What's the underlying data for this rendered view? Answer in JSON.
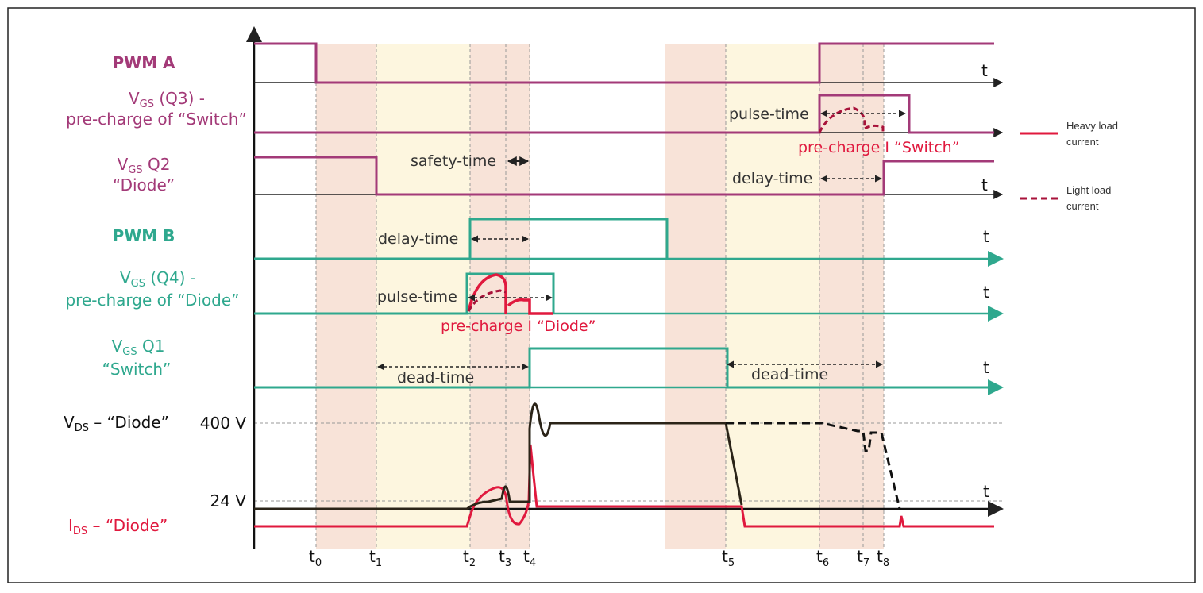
{
  "colors": {
    "pwm_a": "#A33A78",
    "pwm_b": "#2FA88E",
    "heavy": "#E0193E",
    "light": "#A8123A",
    "vds": "#1a1a1a",
    "shade_orange": "#F8E3D8",
    "shade_yellow": "#FDF6DF",
    "dashed_grid": "#999999"
  },
  "signals": {
    "pwm_a": "PWM A",
    "vgs_q3_main": "V",
    "vgs_q3_sub": "GS",
    "vgs_q3_rest": " (Q3) -",
    "vgs_q3_line2": "pre-charge of “Switch”",
    "vgs_q2_main": "V",
    "vgs_q2_sub": "GS",
    "vgs_q2_rest": " Q2",
    "vgs_q2_line2": "“Diode”",
    "pwm_b": "PWM B",
    "vgs_q4_main": "V",
    "vgs_q4_sub": "GS",
    "vgs_q4_rest": " (Q4) -",
    "vgs_q4_line2": "pre-charge of “Diode”",
    "vgs_q1_main": "V",
    "vgs_q1_sub": "GS",
    "vgs_q1_rest": " Q1",
    "vgs_q1_line2": "“Switch”",
    "vds_main": "V",
    "vds_sub": "DS",
    "vds_rest": " – “Diode”",
    "ids_main": "I",
    "ids_sub": "DS",
    "ids_rest": " – “Diode”"
  },
  "voltage_labels": {
    "v400": "400 V",
    "v24": "24 V"
  },
  "axis_t": "t",
  "time_markers": [
    {
      "main": "t",
      "sub": "0"
    },
    {
      "main": "t",
      "sub": "1"
    },
    {
      "main": "t",
      "sub": "2"
    },
    {
      "main": "t",
      "sub": "3"
    },
    {
      "main": "t",
      "sub": "4"
    },
    {
      "main": "t",
      "sub": "5"
    },
    {
      "main": "t",
      "sub": "6"
    },
    {
      "main": "t",
      "sub": "7"
    },
    {
      "main": "t",
      "sub": "8"
    }
  ],
  "annotations": {
    "pulse_time_a": "pulse-time",
    "precharge_switch": "pre-charge I “Switch”",
    "safety_time": "safety-time",
    "delay_time_a": "delay-time",
    "delay_time_b": "delay-time",
    "pulse_time_b": "pulse-time",
    "precharge_diode": "pre-charge I “Diode”",
    "dead_time_1": "dead-time",
    "dead_time_2": "dead-time"
  },
  "legend": {
    "heavy_line1": "Heavy load",
    "heavy_line2": "current",
    "light_line1": "Light load",
    "light_line2": "current"
  }
}
